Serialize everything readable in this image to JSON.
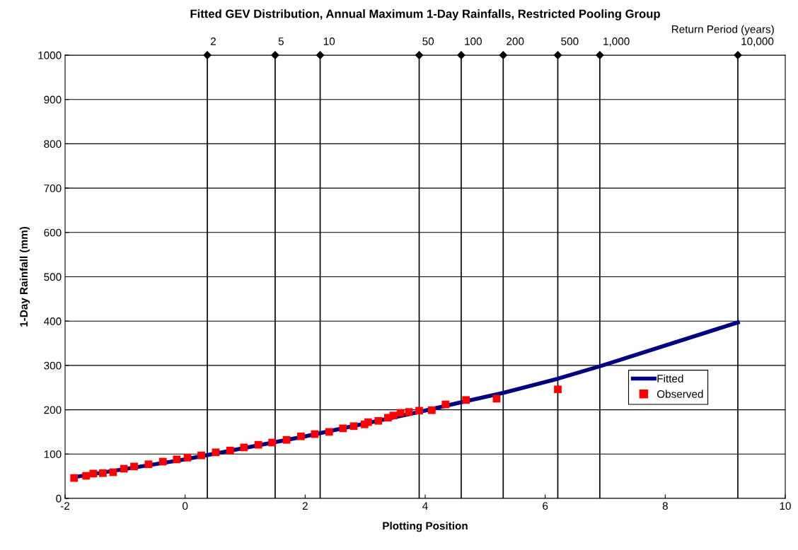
{
  "chart_data": {
    "type": "scatter",
    "title": "Fitted GEV Distribution, Annual Maximum 1-Day Rainfalls, Restricted Pooling Group",
    "xlabel": "Plotting Position",
    "ylabel": "1-Day Rainfall (mm)",
    "xlim": [
      -2,
      10
    ],
    "xticks": [
      -2,
      0,
      2,
      4,
      6,
      8,
      10
    ],
    "ylim": [
      0,
      1000
    ],
    "yticks": [
      0,
      100,
      200,
      300,
      400,
      500,
      600,
      700,
      800,
      900,
      1000
    ],
    "grid": "y",
    "legend": "lower right",
    "annotations": [
      "Return Period (years)",
      {
        "text": "2",
        "x": 0.37,
        "y": 1000
      },
      {
        "text": "5",
        "x": 1.5,
        "y": 1000
      },
      {
        "text": "10",
        "x": 2.25,
        "y": 1000
      },
      {
        "text": "50",
        "x": 3.9,
        "y": 1000
      },
      {
        "text": "100",
        "x": 4.6,
        "y": 1000
      },
      {
        "text": "200",
        "x": 5.3,
        "y": 1000
      },
      {
        "text": "500",
        "x": 6.21,
        "y": 1000
      },
      {
        "text": "1,000",
        "x": 6.91,
        "y": 1000
      },
      {
        "text": "10,000",
        "x": 9.21,
        "y": 1000
      }
    ],
    "ref_lines": [
      {
        "axis": "x",
        "value": 0.37,
        "color": "#000000"
      },
      {
        "axis": "x",
        "value": 1.5,
        "color": "#000000"
      },
      {
        "axis": "x",
        "value": 2.25,
        "color": "#000000"
      },
      {
        "axis": "x",
        "value": 3.9,
        "color": "#000000"
      },
      {
        "axis": "x",
        "value": 4.6,
        "color": "#000000"
      },
      {
        "axis": "x",
        "value": 5.3,
        "color": "#000000"
      },
      {
        "axis": "x",
        "value": 6.21,
        "color": "#000000"
      },
      {
        "axis": "x",
        "value": 6.91,
        "color": "#000000"
      },
      {
        "axis": "x",
        "value": 9.21,
        "color": "#000000"
      }
    ],
    "series": [
      {
        "name": "Fitted",
        "type": "line",
        "color": "#000080",
        "marker": "none",
        "line_style": "solid",
        "x": [
          -1.85,
          0,
          2,
          3.9,
          4.6,
          5.3,
          6.21,
          6.91,
          9.21
        ],
        "values": [
          48,
          88,
          140,
          195,
          217,
          238,
          270,
          298,
          397
        ]
      },
      {
        "name": "Observed",
        "color": "#ff0000",
        "marker": "square",
        "x": [
          -1.85,
          -1.65,
          -1.53,
          -1.37,
          -1.2,
          -1.02,
          -0.85,
          -0.61,
          -0.37,
          -0.14,
          0.04,
          0.27,
          0.51,
          0.75,
          0.98,
          1.22,
          1.45,
          1.69,
          1.93,
          2.16,
          2.4,
          2.63,
          2.81,
          2.99,
          3.05,
          3.22,
          3.38,
          3.47,
          3.59,
          3.73,
          3.9,
          4.11,
          4.34,
          4.68,
          5.19,
          6.21
        ],
        "values": [
          46,
          51,
          56,
          57,
          59,
          67,
          72,
          77,
          83,
          88,
          92,
          97,
          104,
          108,
          115,
          121,
          126,
          132,
          140,
          145,
          150,
          158,
          163,
          167,
          172,
          175,
          182,
          187,
          193,
          195,
          198,
          199,
          212,
          222,
          225,
          246
        ]
      }
    ]
  }
}
